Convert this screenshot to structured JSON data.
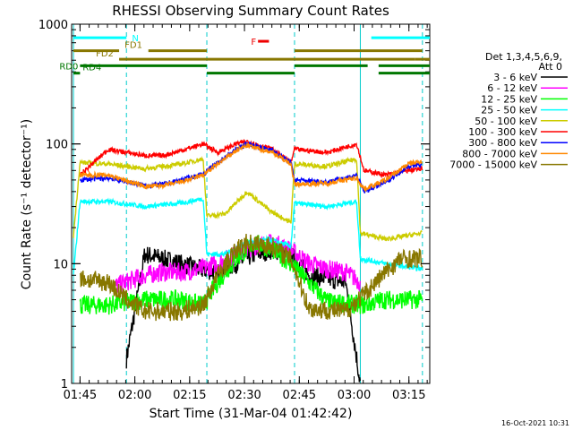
{
  "chart_data": {
    "type": "line",
    "title": "RHESSI Observing Summary Count Rates",
    "xlabel": "Start Time (31-Mar-04 01:42:42)",
    "ylabel": "Count Rate (s⁻¹ detector⁻¹)",
    "yscale": "log",
    "ylim": [
      1,
      1000
    ],
    "xlim_minutes": [
      0,
      98
    ],
    "x_ticks": [
      {
        "min": 2.3,
        "label": "01:45"
      },
      {
        "min": 17.3,
        "label": "02:00"
      },
      {
        "min": 32.3,
        "label": "02:15"
      },
      {
        "min": 47.3,
        "label": "02:30"
      },
      {
        "min": 62.3,
        "label": "02:45"
      },
      {
        "min": 77.3,
        "label": "03:00"
      },
      {
        "min": 92.3,
        "label": "03:15"
      }
    ],
    "y_ticks": [
      {
        "value": 1,
        "label": "1"
      },
      {
        "value": 10,
        "label": "10"
      },
      {
        "value": 100,
        "label": "100"
      },
      {
        "value": 1000,
        "label": "1000"
      }
    ],
    "legend_header": [
      "Det 1,3,4,5,6,9,",
      "Att 0"
    ],
    "legend_placement": "right",
    "timestamp": "16-Oct-2021 10:31",
    "series": [
      {
        "name": "3 - 6 keV",
        "color": "#000000",
        "x": [
          15,
          20,
          25,
          30,
          35,
          40,
          45,
          50,
          55,
          60,
          65,
          70,
          75,
          79
        ],
        "y": [
          1.6,
          12,
          11,
          10,
          9,
          8.5,
          10,
          12,
          13,
          12,
          8,
          7.5,
          7,
          1
        ]
      },
      {
        "name": "6 - 12 keV",
        "color": "#ff00ff",
        "x": [
          12,
          20,
          25,
          30,
          35,
          40,
          45,
          50,
          55,
          60,
          65,
          70,
          75,
          79
        ],
        "y": [
          6.5,
          8,
          8.5,
          8.5,
          9,
          10,
          12,
          14,
          15,
          13,
          10,
          9,
          8.5,
          7
        ]
      },
      {
        "name": "12 - 25 keV",
        "color": "#00ff00",
        "x": [
          2.3,
          10,
          20,
          30,
          36,
          40,
          45,
          50,
          55,
          60,
          70,
          80,
          85,
          90,
          96
        ],
        "y": [
          4.5,
          4.5,
          5,
          5,
          4.5,
          7,
          11,
          15,
          13,
          10,
          4.8,
          4.5,
          5,
          5,
          5
        ]
      },
      {
        "name": "25 - 50 keV",
        "color": "#00ffff",
        "x": [
          0.5,
          2.3,
          10,
          20,
          30,
          36,
          37,
          42,
          48,
          54,
          60,
          61,
          70,
          78,
          79,
          86,
          96
        ],
        "y": [
          8,
          33,
          33,
          30,
          32,
          35,
          12,
          12,
          15,
          16,
          14,
          32,
          30,
          33,
          11,
          10,
          9
        ]
      },
      {
        "name": "50 - 100 keV",
        "color": "#cccc00",
        "x": [
          0.5,
          2.3,
          10,
          20,
          30,
          36,
          37,
          42,
          48,
          54,
          60,
          61,
          70,
          78,
          79,
          86,
          96
        ],
        "y": [
          17,
          70,
          68,
          62,
          68,
          75,
          25,
          26,
          40,
          28,
          22,
          68,
          65,
          75,
          18,
          16,
          18
        ]
      },
      {
        "name": "100 - 300 keV",
        "color": "#ff0000",
        "x": [
          2.3,
          10,
          20,
          25,
          30,
          36,
          40,
          45,
          48,
          55,
          60,
          61,
          70,
          78,
          80,
          86,
          92,
          96
        ],
        "y": [
          55,
          90,
          80,
          80,
          88,
          100,
          85,
          100,
          105,
          90,
          70,
          90,
          85,
          100,
          60,
          55,
          60,
          62
        ]
      },
      {
        "name": "300 - 800 keV",
        "color": "#0000ff",
        "x": [
          2.3,
          10,
          20,
          25,
          30,
          36,
          40,
          45,
          48,
          55,
          60,
          61,
          70,
          78,
          80,
          86,
          92,
          96
        ],
        "y": [
          50,
          52,
          45,
          46,
          50,
          56,
          70,
          90,
          100,
          88,
          70,
          50,
          48,
          55,
          40,
          48,
          65,
          68
        ]
      },
      {
        "name": "800 - 7000 keV",
        "color": "#ff8800",
        "x": [
          2.3,
          10,
          20,
          25,
          30,
          36,
          40,
          45,
          48,
          55,
          60,
          61,
          70,
          78,
          80,
          86,
          92,
          96
        ],
        "y": [
          55,
          55,
          44,
          45,
          48,
          55,
          68,
          88,
          97,
          85,
          68,
          46,
          47,
          52,
          42,
          50,
          68,
          72
        ]
      },
      {
        "name": "7000 - 15000 keV",
        "color": "#887700",
        "x": [
          2.3,
          10,
          15,
          20,
          30,
          36,
          40,
          45,
          48,
          55,
          60,
          65,
          75,
          80,
          85,
          90,
          96
        ],
        "y": [
          7.5,
          7,
          5,
          4,
          4,
          4.5,
          8,
          13,
          15,
          14,
          11,
          4.2,
          4,
          5.5,
          8,
          11,
          11
        ]
      }
    ],
    "flags": [
      {
        "label": "N",
        "color": "#00ffff",
        "y": 770,
        "spans": [
          [
            0.5,
            15
          ],
          [
            82,
            98
          ]
        ]
      },
      {
        "label": "F",
        "color": "#ee0000",
        "y": 720,
        "spans": [
          [
            51,
            54
          ]
        ]
      },
      {
        "label": "FD1",
        "color": "#887700",
        "y": 600,
        "spans": [
          [
            0.5,
            13
          ],
          [
            21,
            37
          ],
          [
            61,
            96
          ]
        ]
      },
      {
        "label": "FD2",
        "color": "#887700",
        "y": 510,
        "spans": [
          [
            13,
            94
          ],
          [
            94,
            98
          ]
        ]
      },
      {
        "label": "RD0",
        "color": "#007700",
        "y": 450,
        "spans": [
          [
            2.3,
            37
          ],
          [
            61,
            81
          ],
          [
            84,
            98
          ]
        ]
      },
      {
        "label": "RD4",
        "color": "#007700",
        "y": 390,
        "spans": [
          [
            0.5,
            2.3
          ],
          [
            37,
            61
          ],
          [
            84,
            98
          ]
        ]
      }
    ],
    "vlines": [
      {
        "color": "#00cccc",
        "style": "solid",
        "x": [
          0.5,
          79
        ]
      },
      {
        "color": "#00cccc",
        "style": "dashed",
        "x": [
          15,
          37,
          61,
          96
        ]
      }
    ]
  }
}
